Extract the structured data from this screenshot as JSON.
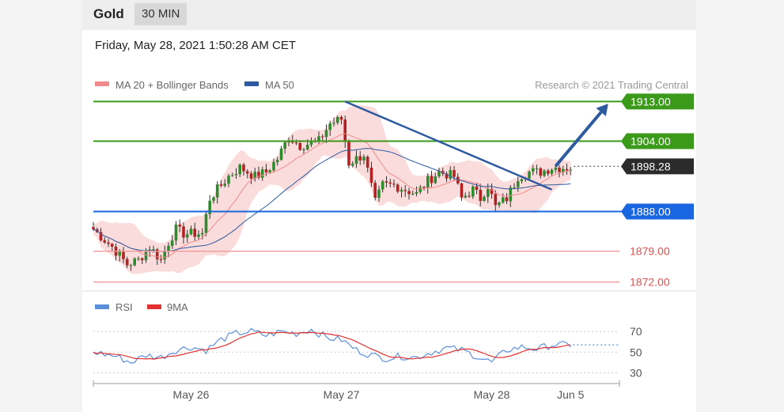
{
  "header": {
    "instrument": "Gold",
    "timeframe": "30 MIN"
  },
  "timestamp": "Friday, May 28, 2021 1:50:28 AM CET",
  "copyright": "Research © 2021 Trading Central",
  "colors": {
    "ma20": "#f08a8a",
    "ma50": "#2e5aa0",
    "band": "#fbdcdc",
    "up": "#2e8b2e",
    "down": "#b22222",
    "resistance": "#3c9a1a",
    "support": "#1a66e0",
    "secondary_support": "#e05050",
    "rsi": "#5b8fdc",
    "rsi_ma": "#e03030"
  },
  "chart_data": [
    {
      "type": "candlestick",
      "legend": [
        {
          "name": "MA 20 + Bollinger Bands",
          "color": "#f08a8a"
        },
        {
          "name": "MA 50",
          "color": "#2e5aa0"
        }
      ],
      "ylim": [
        1870.5,
        1914.5
      ],
      "x_ticks": [
        "May 26",
        "May 27",
        "May 28",
        "Jun 5"
      ],
      "x_tick_index": [
        26,
        66,
        106,
        127
      ],
      "n_bars": 128,
      "levels": [
        {
          "value": 1913.0,
          "label": "1913.00",
          "kind": "resistance"
        },
        {
          "value": 1904.0,
          "label": "1904.00",
          "kind": "resistance"
        },
        {
          "value": 1898.28,
          "label": "1898.28",
          "kind": "current"
        },
        {
          "value": 1888.0,
          "label": "1888.00",
          "kind": "support"
        },
        {
          "value": 1879.0,
          "label": "1879.00",
          "kind": "secondary_support"
        },
        {
          "value": 1872.0,
          "label": "1872.00",
          "kind": "secondary_support"
        }
      ],
      "path_keypoints": [
        [
          0,
          1884
        ],
        [
          5,
          1880
        ],
        [
          9,
          1876
        ],
        [
          12,
          1877
        ],
        [
          15,
          1880
        ],
        [
          18,
          1877
        ],
        [
          20,
          1881
        ],
        [
          22,
          1884
        ],
        [
          24,
          1883
        ],
        [
          29,
          1883
        ],
        [
          31,
          1891
        ],
        [
          36,
          1896
        ],
        [
          39,
          1898
        ],
        [
          43,
          1896
        ],
        [
          46,
          1897
        ],
        [
          49,
          1900
        ],
        [
          52,
          1905
        ],
        [
          55,
          1903
        ],
        [
          60,
          1904
        ],
        [
          63,
          1908
        ],
        [
          66,
          1909
        ],
        [
          68,
          1899
        ],
        [
          70,
          1900
        ],
        [
          72,
          1901
        ],
        [
          75,
          1890
        ],
        [
          77,
          1894
        ],
        [
          80,
          1894
        ],
        [
          83,
          1893
        ],
        [
          86,
          1892
        ],
        [
          89,
          1895
        ],
        [
          92,
          1897
        ],
        [
          96,
          1896
        ],
        [
          98,
          1891
        ],
        [
          101,
          1893
        ],
        [
          103,
          1891
        ],
        [
          105,
          1894
        ],
        [
          107,
          1889
        ],
        [
          110,
          1891
        ],
        [
          113,
          1896
        ],
        [
          116,
          1897
        ],
        [
          119,
          1897
        ],
        [
          122,
          1898
        ]
      ],
      "trend_line": [
        [
          67,
          1913
        ],
        [
          122,
          1893
        ]
      ],
      "forecast_arrow": [
        [
          123,
          1898.3
        ],
        [
          137,
          1912.5
        ]
      ]
    },
    {
      "type": "line",
      "legend": [
        {
          "name": "RSI",
          "color": "#5b8fdc"
        },
        {
          "name": "9MA",
          "color": "#e03030"
        }
      ],
      "ylim": [
        25,
        80
      ],
      "y_ticks": [
        70,
        50,
        30
      ],
      "path_keypoints": [
        [
          0,
          50
        ],
        [
          6,
          46
        ],
        [
          10,
          40
        ],
        [
          14,
          47
        ],
        [
          18,
          45
        ],
        [
          22,
          52
        ],
        [
          26,
          55
        ],
        [
          30,
          52
        ],
        [
          34,
          62
        ],
        [
          38,
          68
        ],
        [
          42,
          70
        ],
        [
          46,
          66
        ],
        [
          50,
          70
        ],
        [
          54,
          68
        ],
        [
          58,
          72
        ],
        [
          62,
          64
        ],
        [
          66,
          62
        ],
        [
          70,
          52
        ],
        [
          74,
          47
        ],
        [
          78,
          44
        ],
        [
          82,
          46
        ],
        [
          86,
          45
        ],
        [
          90,
          50
        ],
        [
          94,
          54
        ],
        [
          98,
          52
        ],
        [
          102,
          46
        ],
        [
          106,
          40
        ],
        [
          110,
          52
        ],
        [
          114,
          55
        ],
        [
          118,
          53
        ],
        [
          122,
          57
        ]
      ],
      "current": 57
    }
  ]
}
